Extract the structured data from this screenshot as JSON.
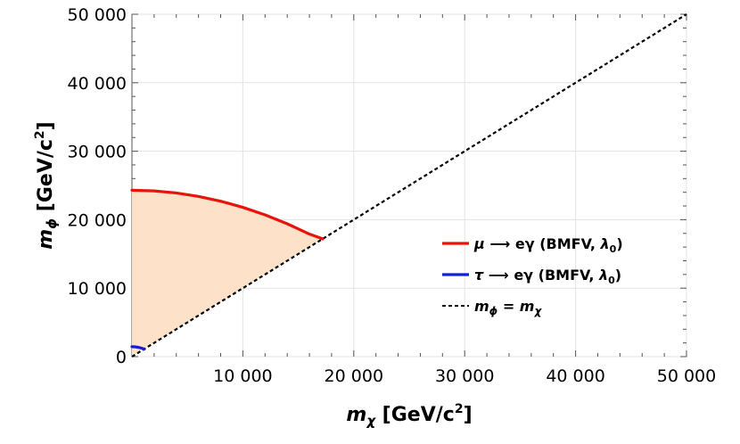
{
  "chart_data": {
    "type": "area",
    "xlabel_main": "m",
    "xlabel_sub": "χ",
    "xlabel_unit": "[GeV/c",
    "xlabel_unit_sup": "2",
    "xlabel_unit_close": "]",
    "ylabel_main": "m",
    "ylabel_sub": "ϕ",
    "ylabel_unit": "[GeV/c",
    "ylabel_unit_sup": "2",
    "ylabel_unit_close": "]",
    "xlim": [
      0,
      50000
    ],
    "ylim": [
      0,
      50000
    ],
    "x_ticks": [
      10000,
      20000,
      30000,
      40000,
      50000
    ],
    "x_tick_labels": [
      "10 000",
      "20 000",
      "30 000",
      "40 000",
      "50 000"
    ],
    "y_ticks": [
      0,
      10000,
      20000,
      30000,
      40000,
      50000
    ],
    "y_tick_labels": [
      "0",
      "10 000",
      "20 000",
      "30 000",
      "40 000",
      "50 000"
    ],
    "grid": true,
    "legend_position": "right-middle",
    "shaded_region": {
      "color": "#fde1c8",
      "description_hidden": true
    },
    "series": [
      {
        "name": "mu_to_egamma",
        "legend_particle": "μ",
        "legend_arrow": "⟶",
        "legend_process": "eγ",
        "legend_detail": "(BMFV,",
        "legend_lambda": "λ",
        "legend_lambda_sub": "0",
        "legend_close": ")",
        "color": "#e8140a",
        "style": "solid",
        "x": [
          0,
          2000,
          4000,
          6000,
          8000,
          10000,
          12000,
          14000,
          16000,
          17200
        ],
        "y": [
          24300,
          24200,
          23900,
          23400,
          22700,
          21800,
          20700,
          19400,
          17900,
          17200
        ]
      },
      {
        "name": "tau_to_egamma",
        "legend_particle": "τ",
        "legend_arrow": "⟶",
        "legend_process": "eγ",
        "legend_detail": "(BMFV,",
        "legend_lambda": "λ",
        "legend_lambda_sub": "0",
        "legend_close": ")",
        "color": "#1020d0",
        "style": "solid",
        "x": [
          0,
          300,
          600,
          900,
          1100
        ],
        "y": [
          1450,
          1430,
          1350,
          1220,
          1100
        ]
      },
      {
        "name": "diagonal",
        "legend_lhs": "m",
        "legend_lhs_sub": "ϕ",
        "legend_eq": "=",
        "legend_rhs": "m",
        "legend_rhs_sub": "χ",
        "color": "#000000",
        "style": "dashed",
        "x": [
          0,
          50000
        ],
        "y": [
          0,
          50000
        ]
      }
    ]
  }
}
